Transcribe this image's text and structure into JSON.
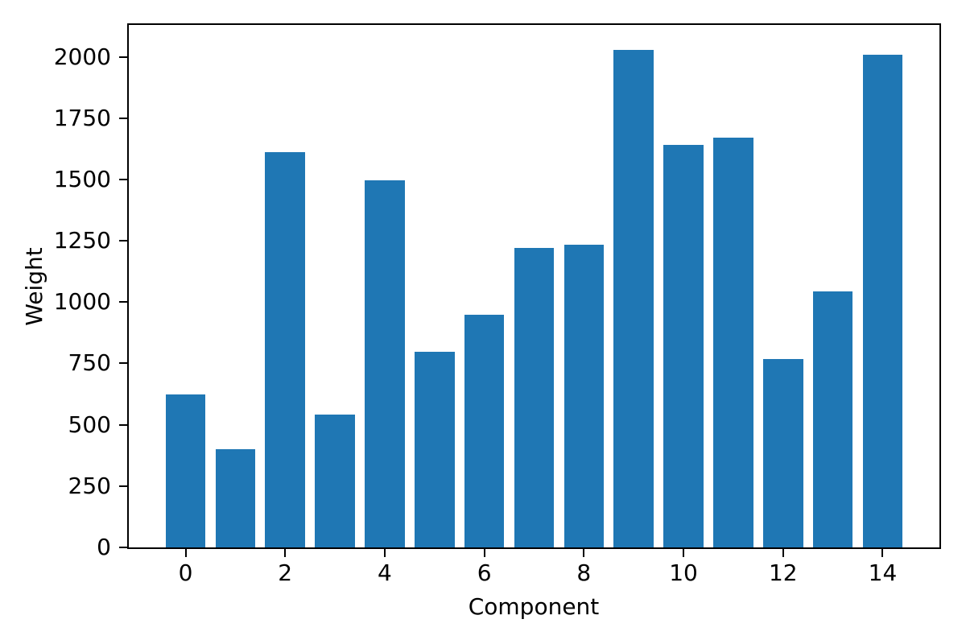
{
  "figure": {
    "background": "#ffffff",
    "axes_color": "#000000",
    "text_color": "#000000"
  },
  "chart_data": {
    "type": "bar",
    "title": "",
    "xlabel": "Component",
    "ylabel": "Weight",
    "categories": [
      0,
      1,
      2,
      3,
      4,
      5,
      6,
      7,
      8,
      9,
      10,
      11,
      12,
      13,
      14
    ],
    "values": [
      624,
      400,
      1612,
      543,
      1495,
      796,
      950,
      1222,
      1234,
      2028,
      1642,
      1671,
      768,
      1045,
      2010
    ],
    "bar_color": "#1f77b4",
    "bar_width": 0.8,
    "xlim": [
      -1.14,
      15.14
    ],
    "ylim": [
      0,
      2130
    ],
    "xticks": {
      "values": [
        0,
        2,
        4,
        6,
        8,
        10,
        12,
        14
      ],
      "labels": [
        "0",
        "2",
        "4",
        "6",
        "8",
        "10",
        "12",
        "14"
      ]
    },
    "yticks": {
      "values": [
        0,
        250,
        500,
        750,
        1000,
        1250,
        1500,
        1750,
        2000
      ],
      "labels": [
        "0",
        "250",
        "500",
        "750",
        "1000",
        "1250",
        "1500",
        "1750",
        "2000"
      ]
    },
    "grid": false,
    "legend": null
  }
}
